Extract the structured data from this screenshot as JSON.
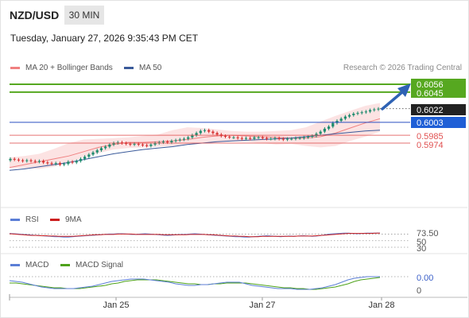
{
  "header": {
    "symbol": "NZD/USD",
    "timeframe": "30 MIN",
    "datetime": "Tuesday, January 27, 2026 9:35:43 PM CET",
    "credit": "Research © 2026 Trading Central"
  },
  "legend": {
    "ma20_bb": "MA 20 + Bollinger Bands",
    "ma50": "MA 50",
    "rsi": "RSI",
    "rsi_ma": "9MA",
    "macd": "MACD",
    "macd_signal": "MACD Signal"
  },
  "colors": {
    "ma20": "#f08080",
    "band_fill": "#fbdada",
    "ma50": "#3a5a9a",
    "candle_up": "#1e8c6e",
    "candle_down": "#d62f2f",
    "green_level": "#56a820",
    "pivot_line": "#2b4fc0",
    "red_level": "#e05050",
    "arrow": "#2e62b4",
    "rsi": "#5b7ed6",
    "rsi_ma": "#cc1f1f",
    "macd": "#5b7ed6",
    "macd_signal": "#4ea21a"
  },
  "chart_data": {
    "type": "candlestick",
    "instrument": "NZD/USD",
    "interval": "30 MIN",
    "x_ticks": [
      "Jan 25",
      "Jan 27",
      "Jan 28"
    ],
    "price_levels": [
      {
        "value": 0.6056,
        "label": "0.6056",
        "style": "resistance-target",
        "color": "#56a820"
      },
      {
        "value": 0.6045,
        "label": "0.6045",
        "style": "resistance",
        "color": "#56a820"
      },
      {
        "value": 0.6022,
        "label": "0.6022",
        "style": "last-price",
        "color": "#222222"
      },
      {
        "value": 0.6003,
        "label": "0.6003",
        "style": "pivot",
        "color": "#1f5fd6"
      },
      {
        "value": 0.5985,
        "label": "0.5985",
        "style": "support",
        "color": "#e05050"
      },
      {
        "value": 0.5974,
        "label": "0.5974",
        "style": "support",
        "color": "#e05050"
      }
    ],
    "closes": [
      0.5952,
      0.5951,
      0.595,
      0.5949,
      0.595,
      0.5949,
      0.5948,
      0.5949,
      0.5947,
      0.5946,
      0.5945,
      0.5946,
      0.5944,
      0.5945,
      0.5948,
      0.5947,
      0.5949,
      0.5952,
      0.5955,
      0.5958,
      0.5961,
      0.5964,
      0.5967,
      0.5969,
      0.5972,
      0.5974,
      0.5975,
      0.5974,
      0.5973,
      0.5972,
      0.5973,
      0.5972,
      0.5971,
      0.597,
      0.5972,
      0.5974,
      0.5975,
      0.5976,
      0.5975,
      0.5977,
      0.5978,
      0.5979,
      0.598,
      0.5982,
      0.5985,
      0.5988,
      0.5991,
      0.5992,
      0.599,
      0.5988,
      0.5986,
      0.5984,
      0.5983,
      0.5982,
      0.5982,
      0.5981,
      0.598,
      0.5981,
      0.598,
      0.5982,
      0.5982,
      0.5981,
      0.598,
      0.598,
      0.5981,
      0.598,
      0.5979,
      0.598,
      0.598,
      0.5981,
      0.5981,
      0.5982,
      0.5983,
      0.5984,
      0.5987,
      0.599,
      0.5994,
      0.5997,
      0.6002,
      0.6005,
      0.6008,
      0.6011,
      0.6013,
      0.6015,
      0.6016,
      0.6017,
      0.6018,
      0.602,
      0.6021,
      0.6022
    ],
    "ma20": [
      0.594,
      0.5944,
      0.5948,
      0.5952,
      0.5956,
      0.5962,
      0.5968,
      0.5972,
      0.5975,
      0.5975,
      0.5976,
      0.5977,
      0.5979,
      0.5982,
      0.5984,
      0.5985,
      0.5984,
      0.5983,
      0.5982,
      0.5981,
      0.5981,
      0.5983,
      0.5988,
      0.5995,
      0.6002,
      0.6008
    ],
    "ma50": [
      0.5936,
      0.5938,
      0.5941,
      0.5944,
      0.5947,
      0.5951,
      0.5955,
      0.5959,
      0.5962,
      0.5965,
      0.5967,
      0.5969,
      0.5972,
      0.5974,
      0.5976,
      0.5977,
      0.5978,
      0.5979,
      0.598,
      0.5981,
      0.5983,
      0.5985,
      0.5987,
      0.5989,
      0.5991,
      0.5992
    ],
    "bb_upper": [
      0.5954,
      0.5956,
      0.5959,
      0.5966,
      0.5974,
      0.5979,
      0.598,
      0.5981,
      0.5982,
      0.5984,
      0.5986,
      0.5992,
      0.5996,
      0.5995,
      0.5993,
      0.5991,
      0.599,
      0.599,
      0.5991,
      0.5992,
      0.5996,
      0.6004,
      0.6012,
      0.6019,
      0.6026,
      0.603
    ],
    "bb_lower": [
      0.594,
      0.5939,
      0.5938,
      0.5941,
      0.5947,
      0.5954,
      0.596,
      0.5965,
      0.5967,
      0.5968,
      0.5969,
      0.597,
      0.5972,
      0.5974,
      0.5975,
      0.5976,
      0.5976,
      0.5974,
      0.5972,
      0.5973,
      0.597,
      0.5968,
      0.597,
      0.5977,
      0.5983,
      0.599
    ],
    "rsi": {
      "last": 73.5,
      "levels": [
        70,
        50,
        30
      ],
      "level_labels": [
        "73.50",
        "50",
        "30"
      ],
      "values": [
        72,
        71,
        70,
        69,
        68,
        67,
        66,
        65,
        64,
        63,
        62,
        62,
        61,
        61,
        62,
        63,
        64,
        65,
        66,
        67,
        68,
        69,
        70,
        70,
        71,
        71,
        70,
        69,
        69,
        70,
        71,
        70,
        69,
        68,
        67,
        66,
        67,
        68,
        69,
        69,
        70,
        71,
        70,
        69,
        68,
        67,
        66,
        65,
        64,
        63,
        62,
        62,
        61,
        61,
        62,
        63,
        64,
        65,
        64,
        63,
        62,
        63,
        64,
        63,
        64,
        65,
        64,
        63,
        64,
        66,
        68,
        70,
        71,
        72,
        73,
        73,
        72,
        71,
        72,
        73,
        73,
        73,
        73.5
      ],
      "ma9": [
        71,
        70,
        69,
        68,
        67,
        66,
        66,
        65,
        65,
        64,
        64,
        63,
        63,
        63,
        63,
        64,
        65,
        66,
        67,
        68,
        68,
        69,
        69,
        69,
        70,
        70,
        70,
        70,
        69,
        69,
        69,
        69,
        69,
        69,
        68,
        68,
        68,
        68,
        68,
        68,
        69,
        69,
        69,
        69,
        68,
        68,
        67,
        66,
        65,
        64,
        64,
        63,
        63,
        62,
        62,
        62,
        63,
        63,
        63,
        63,
        63,
        63,
        63,
        63,
        64,
        64,
        64,
        64,
        65,
        66,
        67,
        68,
        69,
        70,
        71,
        72,
        72,
        72,
        72,
        72,
        72,
        73,
        73
      ]
    },
    "macd": {
      "last": 0.0,
      "level_labels": [
        "0.00",
        "0"
      ],
      "macd": [
        0.0009,
        0.0008,
        0.0007,
        0.0005,
        0.0003,
        0.0001,
        0.0,
        -0.0001,
        -0.0001,
        -0.0001,
        -0.0001,
        0.0,
        0.0001,
        0.0002,
        0.0004,
        0.0006,
        0.0008,
        0.0009,
        0.001,
        0.0011,
        0.0011,
        0.0011,
        0.001,
        0.0009,
        0.0008,
        0.0007,
        0.0005,
        0.0004,
        0.0003,
        0.0003,
        0.0004,
        0.0004,
        0.0005,
        0.0006,
        0.0007,
        0.0007,
        0.0007,
        0.0005,
        0.0003,
        0.0002,
        0.0001,
        0.0,
        -0.0001,
        -0.0001,
        -0.0001,
        -0.0002,
        -0.0002,
        -0.0002,
        -0.0001,
        0.0,
        0.0002,
        0.0004,
        0.0007,
        0.001,
        0.0012,
        0.0013,
        0.0014,
        0.0014,
        0.0014
      ],
      "signal": [
        0.0006,
        0.0006,
        0.0005,
        0.0004,
        0.0003,
        0.0002,
        0.0001,
        0.0,
        0.0,
        -0.0001,
        -0.0001,
        -0.0001,
        0.0,
        0.0001,
        0.0002,
        0.0003,
        0.0005,
        0.0006,
        0.0008,
        0.0009,
        0.001,
        0.001,
        0.001,
        0.001,
        0.0009,
        0.0008,
        0.0007,
        0.0006,
        0.0005,
        0.0005,
        0.0004,
        0.0004,
        0.0005,
        0.0005,
        0.0006,
        0.0006,
        0.0006,
        0.0006,
        0.0005,
        0.0004,
        0.0003,
        0.0002,
        0.0001,
        0.0,
        0.0,
        -0.0001,
        -0.0001,
        -0.0002,
        -0.0002,
        -0.0001,
        0.0,
        0.0001,
        0.0003,
        0.0005,
        0.0008,
        0.001,
        0.0011,
        0.0012,
        0.0013
      ]
    }
  }
}
